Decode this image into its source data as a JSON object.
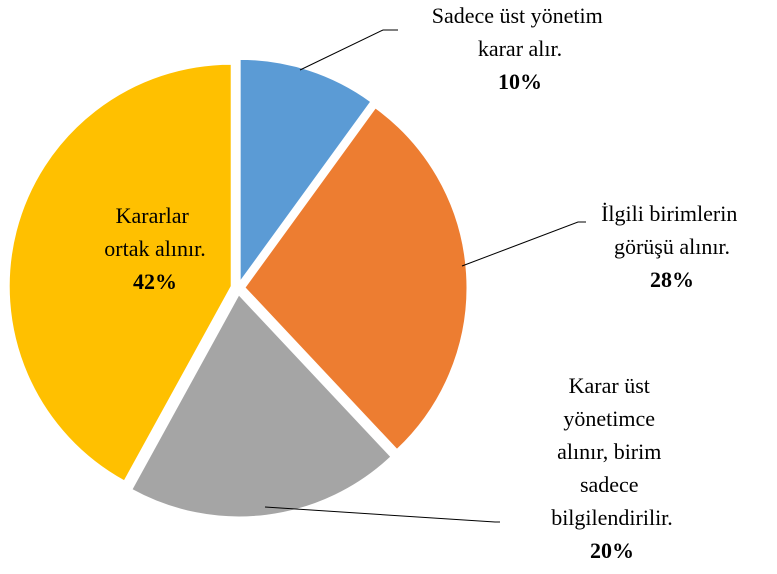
{
  "chart_data": {
    "type": "pie",
    "categories": [
      "Sadece üst yönetim karar alır.",
      "İlgili birimlerin görüşü alınır.",
      "Karar üst yönetimce alınır, birim sadece bilgilendirilir.",
      "Kararlar ortak alınır."
    ],
    "values": [
      10,
      28,
      20,
      42
    ],
    "value_labels": [
      "10%",
      "28%",
      "20%",
      "42%"
    ],
    "colors": [
      "#5b9bd5",
      "#ed7d31",
      "#a5a5a5",
      "#ffc000"
    ]
  }
}
